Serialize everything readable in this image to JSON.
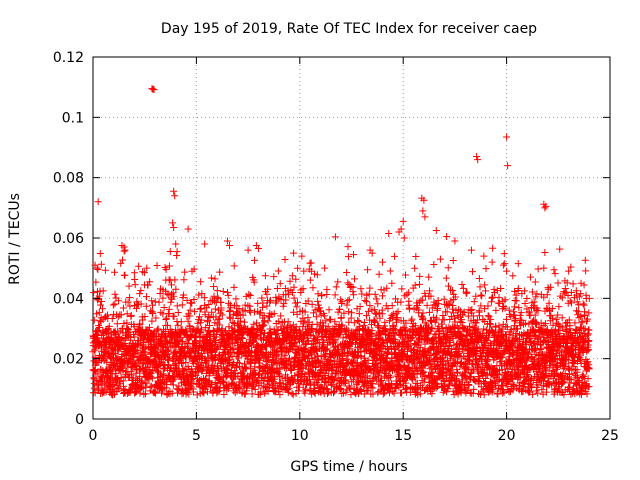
{
  "chart_data": {
    "type": "scatter",
    "title": "Day 195 of 2019, Rate Of TEC Index for receiver caep",
    "xlabel": "GPS time / hours",
    "ylabel": "ROTI / TECUs",
    "xlim": [
      0,
      25
    ],
    "ylim": [
      0,
      0.12
    ],
    "x_ticks": [
      0,
      5,
      10,
      15,
      20,
      25
    ],
    "x_tick_labels": [
      "0",
      "5",
      "10",
      "15",
      "20",
      "25"
    ],
    "y_ticks": [
      0,
      0.02,
      0.04,
      0.06,
      0.08,
      0.1,
      0.12
    ],
    "y_tick_labels": [
      "0",
      "0.02",
      "0.04",
      "0.06",
      "0.08",
      "0.1",
      "0.12"
    ],
    "grid": true,
    "marker": "+",
    "series_color": "#ff0000",
    "data_range_x": [
      0,
      24
    ],
    "typical_band": [
      0.008,
      0.03
    ],
    "series": [
      {
        "name": "ROTI",
        "points": [
          [
            2.85,
            0.1095
          ],
          [
            2.9,
            0.1093
          ],
          [
            2.95,
            0.1092
          ],
          [
            20.0,
            0.0935
          ],
          [
            20.05,
            0.084
          ],
          [
            18.55,
            0.087
          ],
          [
            18.6,
            0.086
          ],
          [
            21.8,
            0.0712
          ],
          [
            21.85,
            0.07
          ],
          [
            21.9,
            0.0705
          ],
          [
            21.85,
            0.0552
          ],
          [
            21.8,
            0.05
          ],
          [
            0.25,
            0.072
          ],
          [
            3.9,
            0.0755
          ],
          [
            3.95,
            0.074
          ],
          [
            3.85,
            0.065
          ],
          [
            3.9,
            0.0635
          ],
          [
            4.0,
            0.058
          ],
          [
            4.6,
            0.063
          ],
          [
            15.9,
            0.0732
          ],
          [
            16.0,
            0.0725
          ],
          [
            15.95,
            0.069
          ],
          [
            16.05,
            0.067
          ],
          [
            15.0,
            0.0655
          ],
          [
            14.9,
            0.063
          ],
          [
            14.8,
            0.062
          ],
          [
            15.05,
            0.06
          ],
          [
            14.3,
            0.0615
          ],
          [
            16.6,
            0.0625
          ],
          [
            17.1,
            0.0605
          ],
          [
            17.5,
            0.059
          ],
          [
            1.4,
            0.0575
          ],
          [
            1.5,
            0.057
          ],
          [
            1.55,
            0.056
          ],
          [
            5.4,
            0.058
          ],
          [
            6.5,
            0.059
          ],
          [
            6.6,
            0.0575
          ],
          [
            7.9,
            0.0575
          ],
          [
            8.0,
            0.0565
          ],
          [
            7.5,
            0.056
          ],
          [
            9.7,
            0.055
          ],
          [
            10.1,
            0.054
          ],
          [
            12.6,
            0.0545
          ],
          [
            13.4,
            0.056
          ],
          [
            13.5,
            0.055
          ],
          [
            16.8,
            0.053
          ],
          [
            18.3,
            0.056
          ],
          [
            18.9,
            0.054
          ],
          [
            20.0,
            0.049
          ],
          [
            20.3,
            0.0475
          ],
          [
            23.0,
            0.049
          ],
          [
            23.6,
            0.045
          ],
          [
            24.0,
            0.04
          ],
          [
            0.1,
            0.051
          ],
          [
            0.2,
            0.05
          ],
          [
            2.6,
            0.05
          ],
          [
            11.2,
            0.05
          ],
          [
            14.0,
            0.052
          ],
          [
            19.3,
            0.052
          ]
        ]
      }
    ]
  }
}
